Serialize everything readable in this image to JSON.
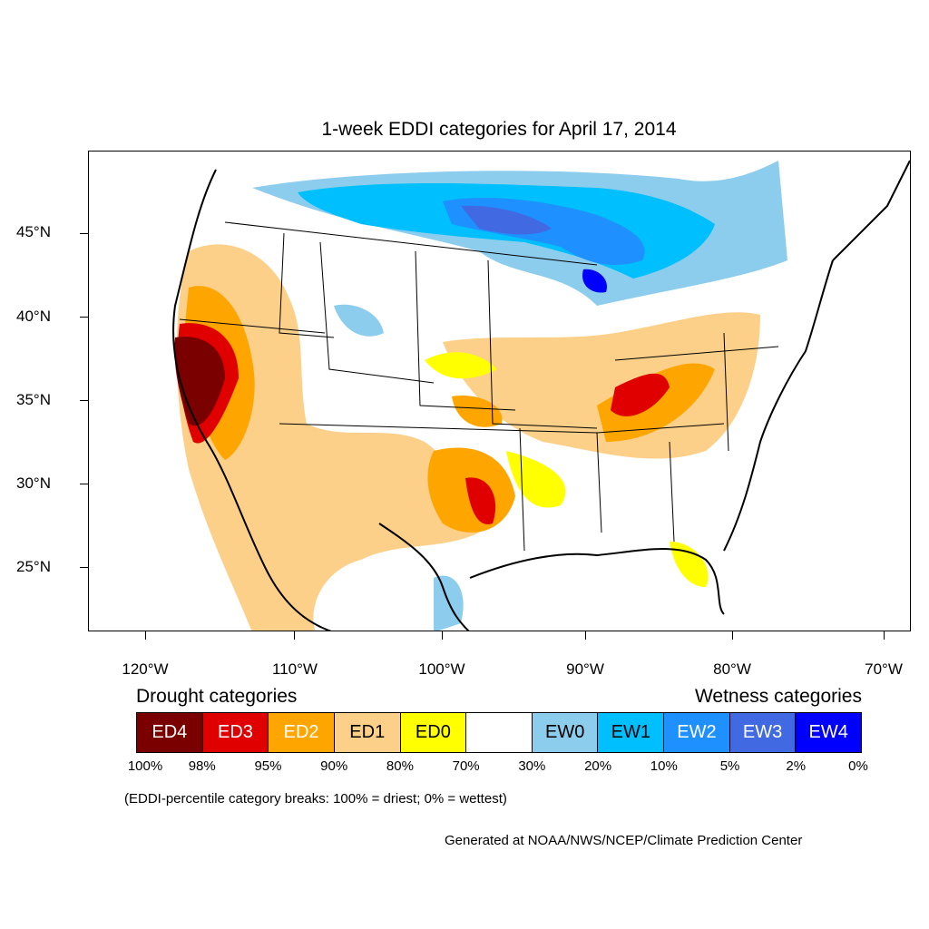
{
  "title": "1-week EDDI categories for April 17, 2014",
  "axes": {
    "lat_labels": [
      "45°N",
      "40°N",
      "35°N",
      "30°N",
      "25°N"
    ],
    "lon_labels": [
      "120°W",
      "110°W",
      "100°W",
      "90°W",
      "80°W",
      "70°W"
    ]
  },
  "legend": {
    "drought_heading": "Drought categories",
    "wetness_heading": "Wetness categories",
    "categories": [
      {
        "label": "ED4",
        "color": "#7a0000",
        "text_color": "#ffffff"
      },
      {
        "label": "ED3",
        "color": "#e00000",
        "text_color": "#ffffff"
      },
      {
        "label": "ED2",
        "color": "#ffa500",
        "text_color": "#ffffff"
      },
      {
        "label": "ED1",
        "color": "#fdd08a",
        "text_color": "#000000"
      },
      {
        "label": "ED0",
        "color": "#ffff00",
        "text_color": "#000000"
      },
      {
        "label": "",
        "color": "#ffffff",
        "text_color": "#000000"
      },
      {
        "label": "EW0",
        "color": "#8ccdee",
        "text_color": "#000000"
      },
      {
        "label": "EW1",
        "color": "#00bfff",
        "text_color": "#000000"
      },
      {
        "label": "EW2",
        "color": "#1e90ff",
        "text_color": "#ffffff"
      },
      {
        "label": "EW3",
        "color": "#4169e1",
        "text_color": "#ffffff"
      },
      {
        "label": "EW4",
        "color": "#0000ff",
        "text_color": "#ffffff"
      }
    ],
    "breaks": [
      "100%",
      "98%",
      "95%",
      "90%",
      "80%",
      "70%",
      "30%",
      "20%",
      "10%",
      "5%",
      "2%",
      "0%"
    ]
  },
  "note": "(EDDI-percentile category breaks: 100% = driest; 0% = wettest)",
  "credit": "Generated at NOAA/NWS/NCEP/Climate Prediction Center"
}
